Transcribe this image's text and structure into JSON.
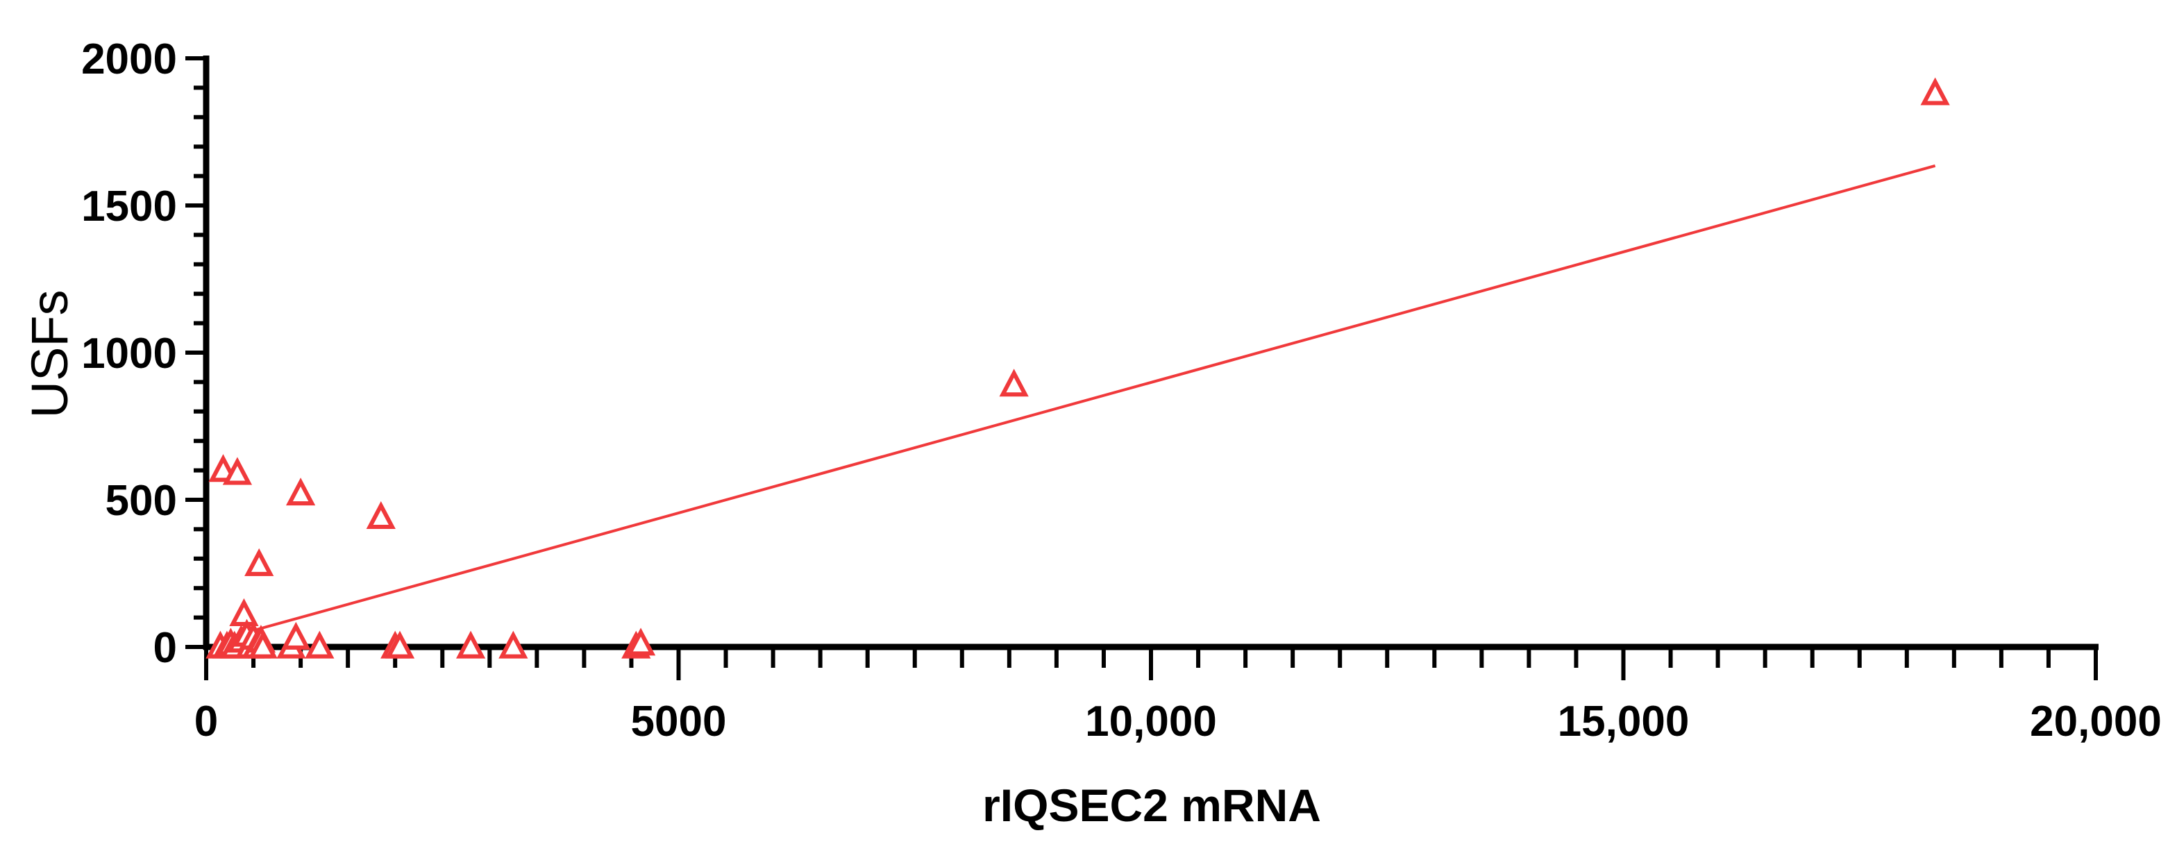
{
  "chart_data": {
    "type": "scatter",
    "title": "",
    "xlabel": "rIQSEC2 mRNA",
    "ylabel": "USFs",
    "xlim": [
      0,
      20000
    ],
    "ylim": [
      0,
      2000
    ],
    "x_major_ticks": [
      0,
      5000,
      10000,
      15000,
      20000
    ],
    "x_tick_labels": [
      "0",
      "5000",
      "10,000",
      "15,000",
      "20,000"
    ],
    "x_minor_step": 500,
    "y_major_ticks": [
      0,
      500,
      1000,
      1500,
      2000
    ],
    "y_tick_labels": [
      "0",
      "500",
      "1000",
      "1500",
      "2000"
    ],
    "y_minor_step": 100,
    "grid": false,
    "legend": "none",
    "colors": {
      "series": "#f0393b",
      "axis": "#000000"
    },
    "marker": "open-triangle",
    "series": [
      {
        "points": [
          {
            "x": 150,
            "y": 0
          },
          {
            "x": 180,
            "y": 600
          },
          {
            "x": 220,
            "y": 0
          },
          {
            "x": 260,
            "y": 10
          },
          {
            "x": 300,
            "y": 0
          },
          {
            "x": 330,
            "y": 590
          },
          {
            "x": 370,
            "y": 20
          },
          {
            "x": 400,
            "y": 110
          },
          {
            "x": 430,
            "y": 40
          },
          {
            "x": 460,
            "y": 0
          },
          {
            "x": 500,
            "y": 30
          },
          {
            "x": 530,
            "y": 0
          },
          {
            "x": 560,
            "y": 280
          },
          {
            "x": 580,
            "y": 20
          },
          {
            "x": 600,
            "y": 0
          },
          {
            "x": 900,
            "y": 0
          },
          {
            "x": 950,
            "y": 30
          },
          {
            "x": 1000,
            "y": 520
          },
          {
            "x": 1200,
            "y": 0
          },
          {
            "x": 1850,
            "y": 440
          },
          {
            "x": 2000,
            "y": 0
          },
          {
            "x": 2050,
            "y": 0
          },
          {
            "x": 2800,
            "y": 0
          },
          {
            "x": 3250,
            "y": 0
          },
          {
            "x": 4550,
            "y": 0
          },
          {
            "x": 4600,
            "y": 10
          },
          {
            "x": 8550,
            "y": 890
          },
          {
            "x": 18300,
            "y": 1880
          }
        ]
      }
    ],
    "fit_line": {
      "x": [
        150,
        18300
      ],
      "y": [
        25,
        1635
      ]
    }
  }
}
